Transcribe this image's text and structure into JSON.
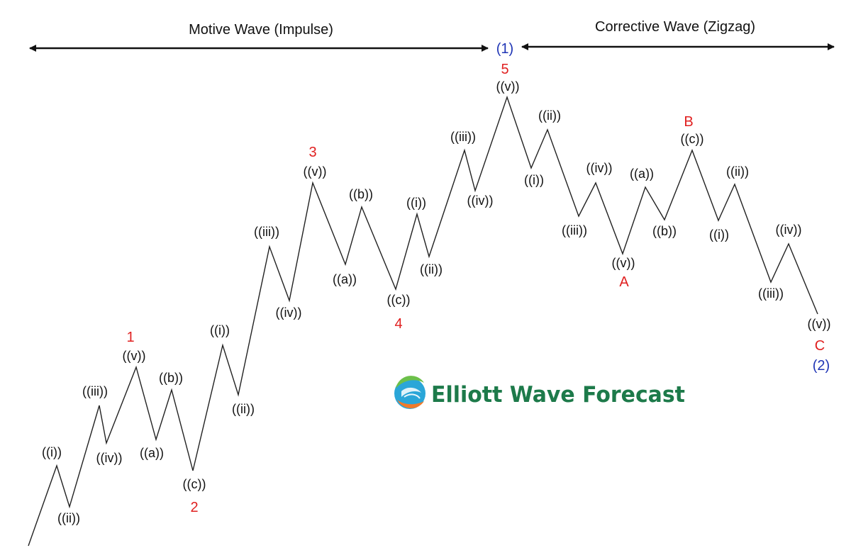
{
  "titles": {
    "motive": "Motive Wave (Impulse)",
    "corrective": "Corrective Wave (Zigzag)"
  },
  "degree_labels": {
    "top": "(1)",
    "bottom": "(2)"
  },
  "main_labels": {
    "w1": "1",
    "w2": "2",
    "w3": "3",
    "w4": "4",
    "w5": "5",
    "A": "A",
    "B": "B",
    "C": "C"
  },
  "sub_labels": {
    "w1_i": "((i))",
    "w1_ii": "((ii))",
    "w1_iii": "((iii))",
    "w1_iv": "((iv))",
    "w1_v": "((v))",
    "w2_a": "((a))",
    "w2_b": "((b))",
    "w2_c": "((c))",
    "w3_i": "((i))",
    "w3_ii": "((ii))",
    "w3_iii": "((iii))",
    "w3_iv": "((iv))",
    "w3_v": "((v))",
    "w4_a": "((a))",
    "w4_b": "((b))",
    "w4_c": "((c))",
    "w5_i": "((i))",
    "w5_ii": "((ii))",
    "w5_iii": "((iii))",
    "w5_iv": "((iv))",
    "w5_v": "((v))",
    "A_i": "((i))",
    "A_ii": "((ii))",
    "A_iii": "((iii))",
    "A_iv": "((iv))",
    "A_v": "((v))",
    "B_a": "((a))",
    "B_b": "((b))",
    "B_c": "((c))",
    "C_i": "((i))",
    "C_ii": "((ii))",
    "C_iii": "((iii))",
    "C_iv": "((iv))",
    "C_v": "((v))"
  },
  "logo": {
    "text": "Elliott Wave Forecast",
    "color": "#1d7a4a"
  },
  "colors": {
    "line": "#222222",
    "arrow": "#111111",
    "main_label": "#e02020",
    "degree_label": "#1f35b5"
  }
}
